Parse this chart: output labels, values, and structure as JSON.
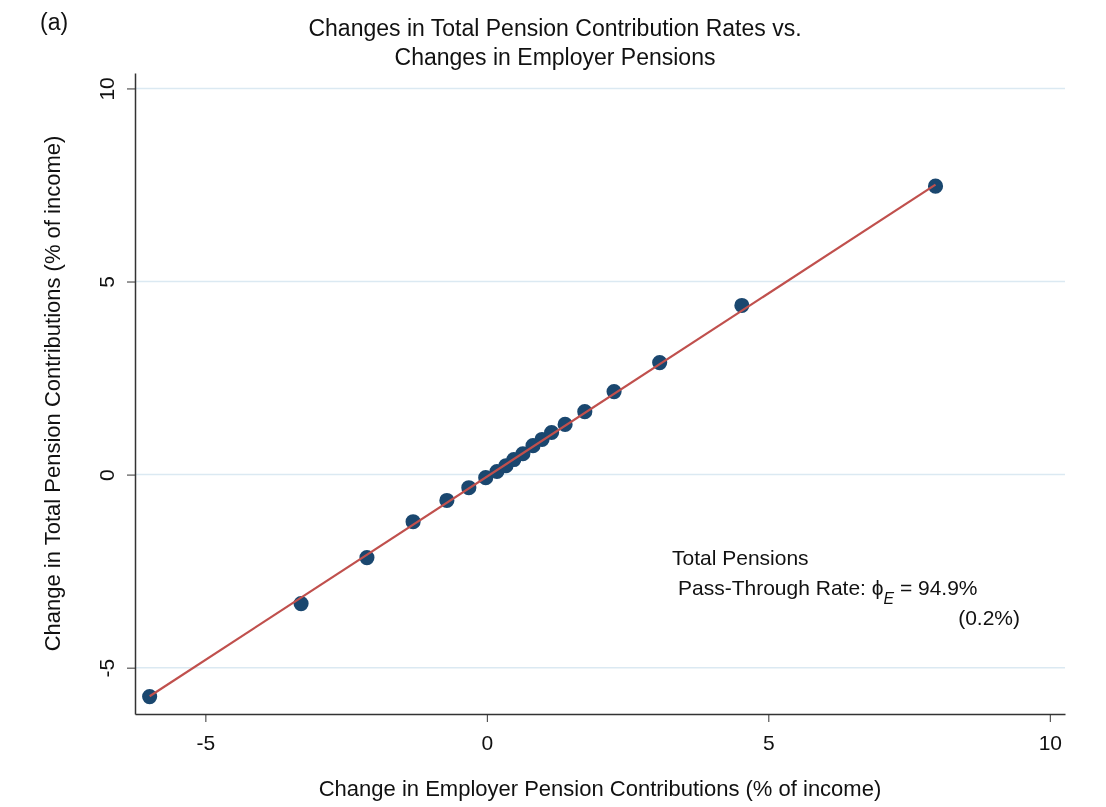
{
  "chart_data": {
    "type": "scatter",
    "title": "Changes in Total Pension Contribution Rates vs. Changes in Employer Pensions",
    "xlabel": "Change in Employer Pension Contributions (% of income)",
    "ylabel": "Change in Total Pension Contributions (% of income)",
    "x": [
      -5.99,
      -3.3,
      -2.13,
      -1.31,
      -0.71,
      -0.32,
      -0.02,
      0.18,
      0.34,
      0.48,
      0.64,
      0.82,
      0.98,
      1.15,
      1.39,
      1.74,
      2.26,
      3.07,
      4.53,
      7.97
    ],
    "series": [
      {
        "type": "scatter",
        "color": "#1a476f",
        "values": [
          -5.75,
          -3.34,
          -2.15,
          -1.22,
          -0.67,
          -0.34,
          -0.08,
          0.08,
          0.23,
          0.39,
          0.54,
          0.75,
          0.91,
          1.09,
          1.3,
          1.63,
          2.15,
          2.9,
          4.38,
          7.47
        ]
      },
      {
        "type": "line",
        "color": "#c0504d",
        "x": [
          -5.99,
          7.97
        ],
        "values": [
          -5.74,
          7.51
        ],
        "marker": "none"
      }
    ],
    "xlim": [
      -6.25,
      10.27
    ],
    "ylim": [
      -6.2,
      10.4
    ],
    "xticks": [
      -5,
      0,
      5,
      10
    ],
    "yticks": [
      -5,
      0,
      5,
      10
    ],
    "grid": "y",
    "marker": "circle",
    "annotations": [
      {
        "text": "(a)"
      },
      {
        "text": "Total Pensions"
      },
      {
        "text": "Pass-Through Rate: ϕ$_{E}$ = 94.9%"
      },
      {
        "text": "(0.2%)"
      }
    ]
  }
}
